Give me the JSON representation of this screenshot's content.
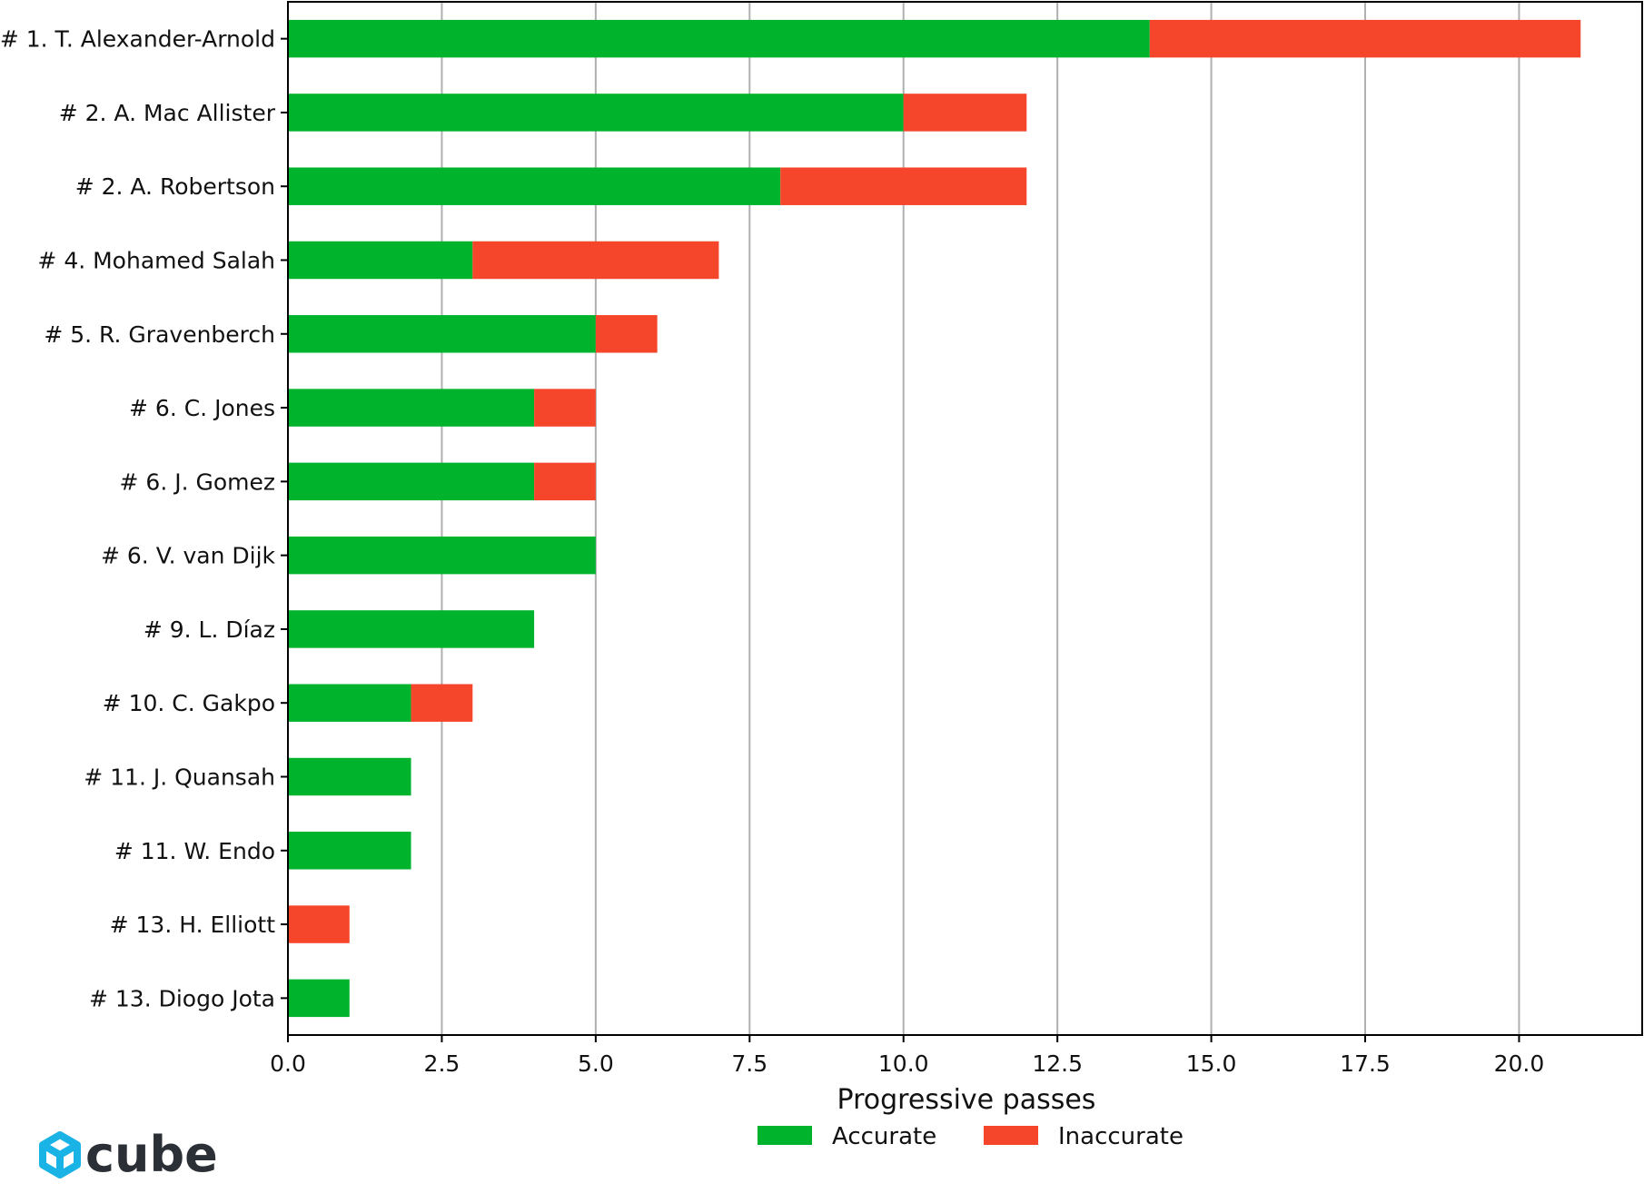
{
  "chart_data": {
    "type": "bar",
    "orientation": "horizontal",
    "stacked": true,
    "categories": [
      "# 1.  T. Alexander-Arnold",
      "# 2.  A. Mac Allister",
      "# 2.  A. Robertson",
      "# 4.  Mohamed Salah",
      "# 5.  R. Gravenberch",
      "# 6.  C. Jones",
      "# 6.  J. Gomez",
      "# 6.  V. van Dijk",
      "# 9.  L. Díaz",
      "# 10.  C. Gakpo",
      "# 11.  J. Quansah",
      "# 11.  W. Endo",
      "# 13.  H. Elliott",
      "# 13.  Diogo Jota"
    ],
    "series": [
      {
        "name": "Accurate",
        "color": "#00b32c",
        "values": [
          14,
          10,
          8,
          3,
          5,
          4,
          4,
          5,
          4,
          2,
          2,
          2,
          0,
          1
        ]
      },
      {
        "name": "Inaccurate",
        "color": "#f5452b",
        "values": [
          7,
          2,
          4,
          4,
          1,
          1,
          1,
          0,
          0,
          1,
          0,
          0,
          1,
          0
        ]
      }
    ],
    "title": "",
    "xlabel": "Progressive passes",
    "ylabel": "",
    "xlim": [
      0,
      22
    ],
    "xticks": [
      "0.0",
      "2.5",
      "5.0",
      "7.5",
      "10.0",
      "12.5",
      "15.0",
      "17.5",
      "20.0"
    ],
    "grid": "vertical",
    "legend": "bottom-center"
  },
  "logo": {
    "text": "cube",
    "icon": "cube-logo-icon",
    "color": "#1ab3e6"
  }
}
